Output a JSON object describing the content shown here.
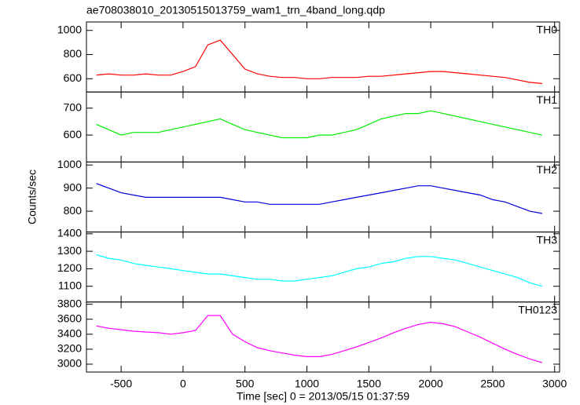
{
  "chart_data": {
    "type": "line",
    "title": "ae708038010_20130515013759_wam1_trn_4band_long.qdp",
    "xlabel": "Time [sec] 0 = 2013/05/15 01:37:59",
    "ylabel": "Counts/sec",
    "xlim": [
      -780,
      3040
    ],
    "xticks": [
      -500,
      0,
      500,
      1000,
      1500,
      2000,
      2500,
      3000
    ],
    "x": [
      -700,
      -600,
      -500,
      -400,
      -300,
      -200,
      -100,
      0,
      100,
      200,
      300,
      400,
      500,
      600,
      700,
      800,
      900,
      1000,
      1100,
      1200,
      1300,
      1400,
      1500,
      1600,
      1700,
      1800,
      1900,
      2000,
      2100,
      2200,
      2300,
      2400,
      2500,
      2600,
      2700,
      2800,
      2900
    ],
    "panels": [
      {
        "name": "TH0",
        "color": "#ff0000",
        "ylim": [
          490,
          1070
        ],
        "yticks": [
          600,
          800,
          1000
        ],
        "values": [
          630,
          640,
          630,
          630,
          640,
          630,
          630,
          660,
          700,
          880,
          920,
          800,
          680,
          640,
          620,
          610,
          610,
          600,
          600,
          610,
          610,
          610,
          620,
          620,
          630,
          640,
          650,
          660,
          660,
          650,
          640,
          630,
          620,
          610,
          590,
          570,
          560
        ]
      },
      {
        "name": "TH1",
        "color": "#00ee00",
        "ylim": [
          500,
          760
        ],
        "yticks": [
          600,
          700
        ],
        "values": [
          640,
          620,
          600,
          610,
          610,
          610,
          620,
          630,
          640,
          650,
          660,
          640,
          620,
          610,
          600,
          590,
          590,
          590,
          600,
          600,
          610,
          620,
          640,
          660,
          670,
          680,
          680,
          690,
          680,
          670,
          660,
          650,
          640,
          630,
          620,
          610,
          600
        ]
      },
      {
        "name": "TH2",
        "color": "#0000dd",
        "ylim": [
          710,
          1013
        ],
        "yticks": [
          800,
          900,
          1000
        ],
        "values": [
          920,
          900,
          880,
          870,
          860,
          860,
          860,
          860,
          860,
          860,
          860,
          850,
          840,
          840,
          830,
          830,
          830,
          830,
          830,
          840,
          850,
          860,
          870,
          880,
          890,
          900,
          910,
          910,
          900,
          890,
          880,
          870,
          850,
          840,
          820,
          800,
          790
        ]
      },
      {
        "name": "TH3",
        "color": "#00ffff",
        "ylim": [
          1010,
          1410
        ],
        "yticks": [
          1100,
          1200,
          1300,
          1400
        ],
        "values": [
          1280,
          1260,
          1250,
          1230,
          1220,
          1210,
          1200,
          1190,
          1180,
          1170,
          1170,
          1160,
          1150,
          1140,
          1140,
          1130,
          1130,
          1140,
          1150,
          1160,
          1180,
          1200,
          1210,
          1230,
          1240,
          1260,
          1270,
          1270,
          1260,
          1250,
          1230,
          1210,
          1190,
          1170,
          1150,
          1120,
          1100
        ]
      },
      {
        "name": "TH0123",
        "color": "#ff00ff",
        "ylim": [
          2895,
          3830
        ],
        "yticks": [
          3000,
          3200,
          3400,
          3600,
          3800
        ],
        "values": [
          3510,
          3480,
          3460,
          3440,
          3430,
          3420,
          3400,
          3420,
          3450,
          3650,
          3650,
          3400,
          3300,
          3220,
          3180,
          3150,
          3120,
          3100,
          3100,
          3130,
          3180,
          3230,
          3290,
          3350,
          3420,
          3480,
          3530,
          3560,
          3540,
          3500,
          3430,
          3360,
          3280,
          3200,
          3130,
          3070,
          3020
        ]
      }
    ]
  }
}
